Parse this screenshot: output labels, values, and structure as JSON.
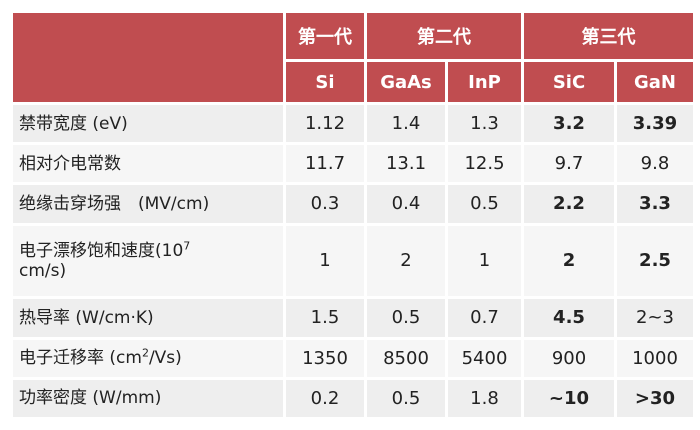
{
  "header": {
    "generations": {
      "first": "第一代",
      "second": "第二代",
      "third": "第三代"
    },
    "materials": [
      "Si",
      "GaAs",
      "InP",
      "SiC",
      "GaN"
    ]
  },
  "rows": [
    {
      "label": "禁带宽度 (eV)",
      "values": [
        "1.12",
        "1.4",
        "1.3",
        "3.2",
        "3.39"
      ]
    },
    {
      "label": "相对介电常数",
      "values": [
        "11.7",
        "13.1",
        "12.5",
        "9.7",
        "9.8"
      ]
    },
    {
      "label": "绝缘击穿场强　(MV/cm)",
      "values": [
        "0.3",
        "0.4",
        "0.5",
        "2.2",
        "3.3"
      ]
    },
    {
      "label_before": "电子漂移饱和速度(10",
      "label_sup": "7",
      "label_after": "cm/s)",
      "values": [
        "1",
        "2",
        "1",
        "2",
        "2.5"
      ]
    },
    {
      "label": "热导率 (W/cm·K)",
      "values": [
        "1.5",
        "0.5",
        "0.7",
        "4.5",
        "2~3"
      ]
    },
    {
      "label_before": "电子迁移率 (cm",
      "label_sup": "2",
      "label_after": "/Vs)",
      "values": [
        "1350",
        "8500",
        "5400",
        "900",
        "1000"
      ]
    },
    {
      "label": "功率密度 (W/mm)",
      "values": [
        "0.2",
        "0.5",
        "1.8",
        "~10",
        ">30"
      ]
    }
  ]
}
